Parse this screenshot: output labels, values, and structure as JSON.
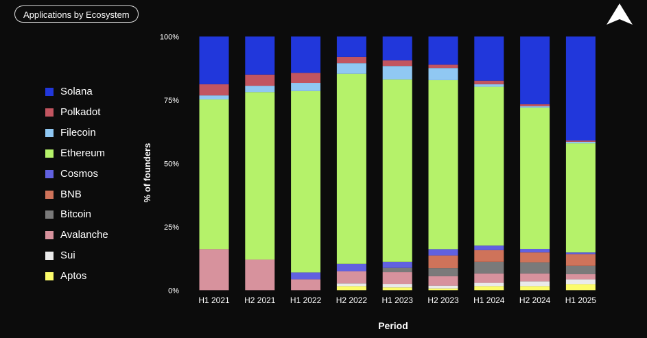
{
  "header": {
    "badge_label": "Applications by Ecosystem"
  },
  "logo": {
    "name": "triangle-logo"
  },
  "chart_data": {
    "type": "bar",
    "stacked": true,
    "title": "",
    "xlabel": "Period",
    "ylabel": "% of founders",
    "ylim": [
      0,
      100
    ],
    "yticks": [
      "0%",
      "25%",
      "50%",
      "75%",
      "100%"
    ],
    "ytick_values": [
      0,
      25,
      50,
      75,
      100
    ],
    "grid": false,
    "legend_position": "left",
    "categories": [
      "H1 2021",
      "H2 2021",
      "H1 2022",
      "H2 2022",
      "H1 2023",
      "H2 2023",
      "H1 2024",
      "H2 2024",
      "H1 2025"
    ],
    "series": [
      {
        "name": "Aptos",
        "color": "#fcfc6a",
        "values": [
          0,
          0,
          0,
          1.6,
          1.1,
          0.7,
          1.6,
          1.6,
          2.4
        ]
      },
      {
        "name": "Sui",
        "color": "#eaeaea",
        "values": [
          0,
          0,
          0,
          1.1,
          1.4,
          1.1,
          1.3,
          1.9,
          1.9
        ]
      },
      {
        "name": "Avalanche",
        "color": "#d7929d",
        "values": [
          16.2,
          12.1,
          4.3,
          4.8,
          4.6,
          3.7,
          3.7,
          3.1,
          2.0
        ]
      },
      {
        "name": "Bitcoin",
        "color": "#7a7a7a",
        "values": [
          0,
          0,
          0,
          0,
          1.7,
          3.2,
          4.6,
          4.4,
          3.3
        ]
      },
      {
        "name": "BNB",
        "color": "#cf735a",
        "values": [
          0,
          0,
          0,
          0,
          0,
          5.0,
          4.6,
          3.9,
          4.6
        ]
      },
      {
        "name": "Cosmos",
        "color": "#6161e0",
        "values": [
          0,
          0,
          2.7,
          2.9,
          2.4,
          2.5,
          1.8,
          1.4,
          0.7
        ]
      },
      {
        "name": "Ethereum",
        "color": "#b5f26a",
        "values": [
          59.0,
          66.0,
          71.5,
          74.9,
          71.9,
          66.6,
          62.6,
          55.7,
          43.0
        ]
      },
      {
        "name": "Filecoin",
        "color": "#90c8f3",
        "values": [
          1.6,
          2.5,
          3.2,
          4.2,
          5.3,
          4.8,
          1.0,
          0.5,
          0.6
        ]
      },
      {
        "name": "Polkadot",
        "color": "#c25560",
        "values": [
          4.4,
          4.4,
          4.0,
          2.5,
          2.2,
          1.3,
          1.4,
          0.8,
          0.5
        ]
      },
      {
        "name": "Solana",
        "color": "#2137db",
        "values": [
          18.8,
          15.0,
          14.3,
          8.0,
          9.4,
          11.1,
          17.4,
          26.7,
          41.0
        ]
      }
    ],
    "legend_order": [
      "Solana",
      "Polkadot",
      "Filecoin",
      "Ethereum",
      "Cosmos",
      "BNB",
      "Bitcoin",
      "Avalanche",
      "Sui",
      "Aptos"
    ]
  }
}
